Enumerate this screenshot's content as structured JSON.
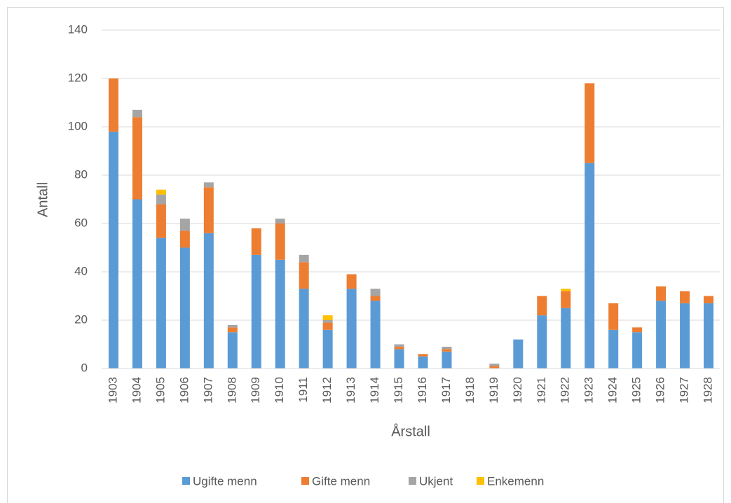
{
  "chart_data": {
    "type": "stacked_bar",
    "x_label": "Årstall",
    "y_label": "Antall",
    "categories": [
      "1903",
      "1904",
      "1905",
      "1906",
      "1907",
      "1908",
      "1909",
      "1910",
      "1911",
      "1912",
      "1913",
      "1914",
      "1915",
      "1916",
      "1917",
      "1918",
      "1919",
      "1920",
      "1921",
      "1922",
      "1923",
      "1924",
      "1925",
      "1926",
      "1927",
      "1928"
    ],
    "series": [
      {
        "name": "Ugifte menn",
        "color": "#5b9bd5",
        "values": [
          98,
          70,
          54,
          50,
          56,
          15,
          47,
          45,
          33,
          16,
          33,
          28,
          8,
          5,
          7,
          0,
          0,
          12,
          22,
          25,
          85,
          16,
          15,
          28,
          27,
          27
        ]
      },
      {
        "name": "Gifte menn",
        "color": "#ed7d31",
        "values": [
          22,
          34,
          14,
          7,
          19,
          2,
          11,
          15,
          11,
          3,
          6,
          2,
          1,
          1,
          1,
          0,
          1,
          0,
          8,
          7,
          33,
          11,
          2,
          6,
          5,
          3
        ]
      },
      {
        "name": "Ukjent",
        "color": "#a5a5a5",
        "values": [
          0,
          3,
          4,
          5,
          2,
          1,
          0,
          2,
          3,
          1,
          0,
          3,
          1,
          0,
          1,
          0,
          1,
          0,
          0,
          0,
          0,
          0,
          0,
          0,
          0,
          0
        ]
      },
      {
        "name": "Enkemenn",
        "color": "#ffc000",
        "values": [
          0,
          0,
          2,
          0,
          0,
          0,
          0,
          0,
          0,
          2,
          0,
          0,
          0,
          0,
          0,
          0,
          0,
          0,
          0,
          1,
          0,
          0,
          0,
          0,
          0,
          0
        ]
      }
    ],
    "ylim": [
      0,
      140
    ],
    "yticks": [
      0,
      20,
      40,
      60,
      80,
      100,
      120,
      140
    ],
    "grid": true,
    "legend": "bottom"
  }
}
